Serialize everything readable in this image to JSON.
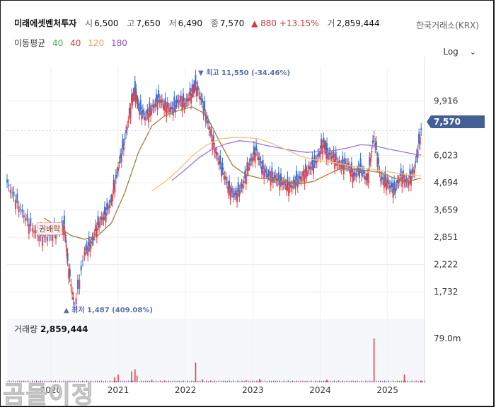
{
  "header": {
    "name": "미래에셋벤처투자",
    "open_label": "시",
    "open": "6,500",
    "high_label": "고",
    "high": "7,650",
    "low_label": "저",
    "low": "6,490",
    "close_label": "종",
    "close": "7,570",
    "change": "▲ 880 +13.15%",
    "volume_label": "거",
    "volume": "2,859,444",
    "exchange": "한국거래소(KRX)"
  },
  "ma_legend": {
    "title": "이동평균",
    "ma40": "40",
    "ma40_color": "#4aa84a",
    "ma40b": "40",
    "ma40b_color": "#d9363e",
    "ma120": "120",
    "ma120_color": "#e8a04a",
    "ma180": "180",
    "ma180_color": "#8a4ad9"
  },
  "scale": {
    "label": "Log"
  },
  "price_tag": "7,570",
  "annotations": {
    "high": "▼ 최고 11,550 (-34.46%)",
    "low": "▲ 최저 1,487 (409.08%)",
    "rights": "권배락"
  },
  "volume_panel": {
    "label": "거래량",
    "value": "2,859,444",
    "axis_tick": "79.0m"
  },
  "watermark": "곰돌이정",
  "chart_data": {
    "type": "candlestick",
    "scale": "log",
    "y_ticks": [
      9916,
      6023,
      4694,
      3659,
      2851,
      2222,
      1732
    ],
    "y_tick_labels": [
      "9,916",
      "6,023",
      "4,694",
      "3,659",
      "2,851",
      "2,222",
      "1,732"
    ],
    "x_tick_labels": [
      "2020",
      "2021",
      "2022",
      "2023",
      "2024",
      "2025"
    ],
    "x_ticks_year": [
      2020,
      2021,
      2022,
      2023,
      2024,
      2025
    ],
    "ylim": [
      1400,
      13500
    ],
    "xlim": [
      2019.35,
      2025.55
    ],
    "series": [
      {
        "name": "close",
        "x": [
          2019.35,
          2019.5,
          2019.65,
          2019.8,
          2019.95,
          2020.1,
          2020.2,
          2020.25,
          2020.35,
          2020.5,
          2020.6,
          2020.7,
          2020.8,
          2020.9,
          2021.0,
          2021.1,
          2021.2,
          2021.25,
          2021.3,
          2021.4,
          2021.5,
          2021.6,
          2021.7,
          2021.8,
          2021.9,
          2022.0,
          2022.1,
          2022.15,
          2022.25,
          2022.35,
          2022.45,
          2022.55,
          2022.65,
          2022.75,
          2022.85,
          2022.95,
          2023.05,
          2023.15,
          2023.25,
          2023.35,
          2023.45,
          2023.55,
          2023.65,
          2023.75,
          2023.85,
          2023.95,
          2024.05,
          2024.1,
          2024.2,
          2024.3,
          2024.4,
          2024.5,
          2024.6,
          2024.7,
          2024.8,
          2024.9,
          2025.0,
          2025.1,
          2025.2,
          2025.3,
          2025.4,
          2025.5
        ],
        "y": [
          4700,
          3900,
          3300,
          2900,
          2850,
          3050,
          3200,
          2300,
          1500,
          2500,
          2700,
          3200,
          3500,
          4000,
          5400,
          7000,
          9800,
          11000,
          9500,
          8600,
          9200,
          10200,
          9400,
          9200,
          10000,
          9700,
          10800,
          11550,
          9800,
          7800,
          6200,
          5300,
          4400,
          4200,
          4600,
          5600,
          6300,
          5300,
          5000,
          4900,
          4700,
          4500,
          4800,
          5000,
          5400,
          5800,
          6800,
          6200,
          5900,
          5500,
          5600,
          5000,
          5400,
          4800,
          7200,
          4900,
          4700,
          4400,
          5000,
          4700,
          5300,
          7570
        ]
      },
      {
        "name": "MA40",
        "x": [
          2019.9,
          2020.1,
          2020.3,
          2020.5,
          2020.7,
          2020.9,
          2021.1,
          2021.3,
          2021.5,
          2021.7,
          2021.9,
          2022.1,
          2022.3,
          2022.5,
          2022.7,
          2022.9,
          2023.1,
          2023.3,
          2023.5,
          2023.7,
          2023.9,
          2024.1,
          2024.3,
          2024.5,
          2024.7,
          2024.9,
          2025.1,
          2025.3,
          2025.5
        ],
        "y": [
          3400,
          3150,
          2900,
          2800,
          2900,
          3250,
          4300,
          6200,
          7900,
          8700,
          9100,
          9400,
          8800,
          6900,
          5500,
          5050,
          4900,
          4850,
          4750,
          4650,
          4750,
          5050,
          5350,
          5300,
          5250,
          5150,
          4900,
          4750,
          4900
        ]
      },
      {
        "name": "MA180",
        "x": [
          2021.8,
          2022.0,
          2022.2,
          2022.4,
          2022.6,
          2022.8,
          2023.0,
          2023.2,
          2023.4,
          2023.6,
          2023.8,
          2024.0,
          2024.2,
          2024.4,
          2024.6,
          2024.8,
          2025.0,
          2025.2,
          2025.4,
          2025.5
        ],
        "y": [
          4800,
          5300,
          5900,
          6400,
          6700,
          6900,
          6800,
          6600,
          6450,
          6300,
          6200,
          6250,
          6300,
          6450,
          6650,
          6600,
          6400,
          6250,
          6100,
          6050
        ]
      },
      {
        "name": "MA120",
        "x": [
          2021.5,
          2021.7,
          2021.9,
          2022.1,
          2022.3,
          2022.5,
          2022.7,
          2022.9,
          2023.1,
          2023.3,
          2023.5,
          2023.7,
          2023.9,
          2024.1,
          2024.3,
          2024.5,
          2024.7,
          2024.9,
          2025.1,
          2025.3,
          2025.5
        ],
        "y": [
          4350,
          4750,
          5300,
          6000,
          6600,
          7000,
          7100,
          7100,
          7000,
          6700,
          6350,
          6000,
          5800,
          5700,
          5600,
          5450,
          5350,
          5250,
          5150,
          5050,
          5000
        ]
      }
    ],
    "volume_peaks": [
      {
        "x": 2020.95,
        "v": 0.12
      },
      {
        "x": 2021.0,
        "v": 0.18
      },
      {
        "x": 2021.2,
        "v": 0.25
      },
      {
        "x": 2021.25,
        "v": 0.3
      },
      {
        "x": 2021.28,
        "v": 0.15
      },
      {
        "x": 2021.5,
        "v": 0.06
      },
      {
        "x": 2022.15,
        "v": 0.45
      },
      {
        "x": 2022.25,
        "v": 0.07
      },
      {
        "x": 2022.9,
        "v": 0.05
      },
      {
        "x": 2023.1,
        "v": 0.08
      },
      {
        "x": 2024.1,
        "v": 0.06
      },
      {
        "x": 2024.8,
        "v": 1.0
      },
      {
        "x": 2025.25,
        "v": 0.18
      },
      {
        "x": 2025.5,
        "v": 0.04
      }
    ]
  }
}
